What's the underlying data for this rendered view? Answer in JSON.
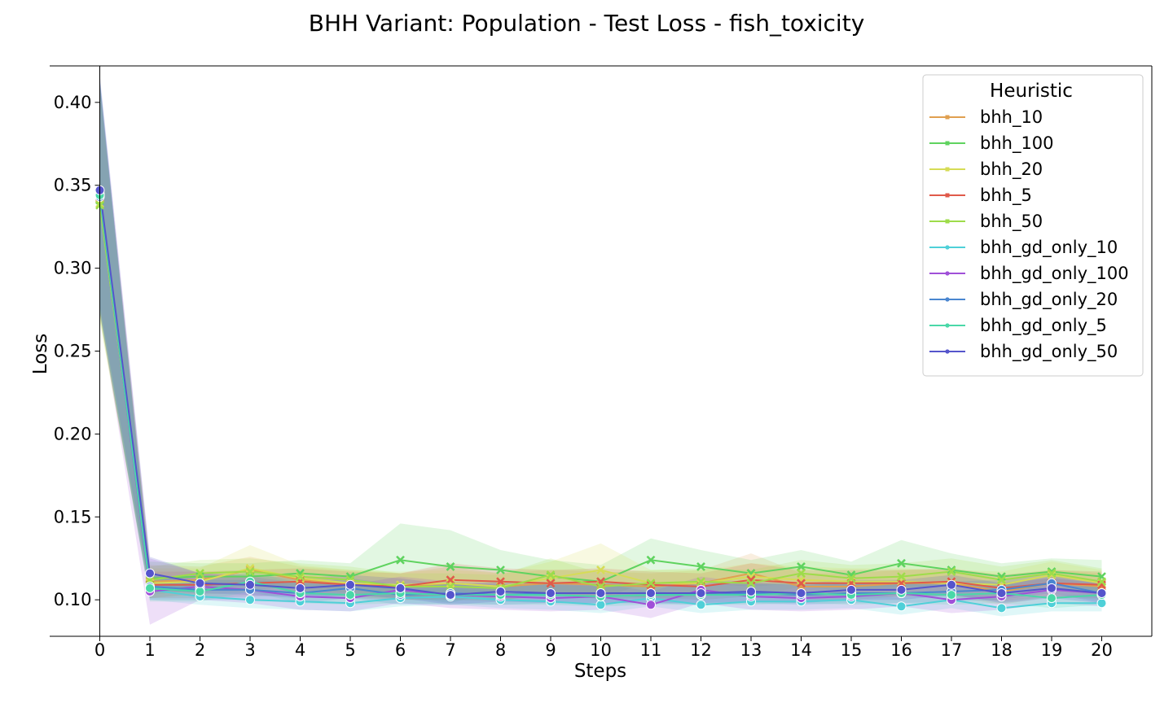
{
  "chart_data": {
    "type": "line",
    "title": "BHH Variant: Population - Test Loss - fish_toxicity",
    "xlabel": "Steps",
    "ylabel": "Loss",
    "xlim": [
      -1,
      21
    ],
    "ylim": [
      0.078,
      0.422
    ],
    "x": [
      0,
      1,
      2,
      3,
      4,
      5,
      6,
      7,
      8,
      9,
      10,
      11,
      12,
      13,
      14,
      15,
      16,
      17,
      18,
      19,
      20
    ],
    "x_ticks": [
      "0",
      "1",
      "2",
      "3",
      "4",
      "5",
      "6",
      "7",
      "8",
      "9",
      "10",
      "11",
      "12",
      "13",
      "14",
      "15",
      "16",
      "17",
      "18",
      "19",
      "20"
    ],
    "y_ticks": [
      {
        "value": 0.1,
        "label": "0.10"
      },
      {
        "value": 0.15,
        "label": "0.15"
      },
      {
        "value": 0.2,
        "label": "0.20"
      },
      {
        "value": 0.25,
        "label": "0.25"
      },
      {
        "value": 0.3,
        "label": "0.30"
      },
      {
        "value": 0.35,
        "label": "0.35"
      },
      {
        "value": 0.4,
        "label": "0.40"
      }
    ],
    "grid": false,
    "band": "confidence interval shaded around each series",
    "legend": {
      "title": "Heuristic",
      "position": "top-right"
    },
    "series": [
      {
        "name": "bhh_10",
        "color": "#e0a050",
        "marker": "x",
        "values": [
          0.342,
          0.111,
          0.112,
          0.118,
          0.112,
          0.11,
          0.108,
          0.11,
          0.108,
          0.11,
          0.109,
          0.108,
          0.11,
          0.116,
          0.108,
          0.108,
          0.11,
          0.11,
          0.105,
          0.11,
          0.108
        ],
        "band": [
          0.07,
          0.01,
          0.008,
          0.008,
          0.008,
          0.008,
          0.008,
          0.01,
          0.008,
          0.008,
          0.008,
          0.008,
          0.008,
          0.012,
          0.008,
          0.008,
          0.008,
          0.008,
          0.008,
          0.008,
          0.008
        ]
      },
      {
        "name": "bhh_100",
        "color": "#5fd35f",
        "marker": "x",
        "values": [
          0.341,
          0.113,
          0.114,
          0.114,
          0.116,
          0.114,
          0.124,
          0.12,
          0.118,
          0.114,
          0.111,
          0.124,
          0.12,
          0.116,
          0.12,
          0.115,
          0.122,
          0.118,
          0.114,
          0.117,
          0.114
        ],
        "band": [
          0.07,
          0.01,
          0.008,
          0.008,
          0.008,
          0.008,
          0.022,
          0.022,
          0.012,
          0.01,
          0.01,
          0.013,
          0.01,
          0.008,
          0.01,
          0.008,
          0.014,
          0.01,
          0.008,
          0.008,
          0.01
        ]
      },
      {
        "name": "bhh_20",
        "color": "#d6dc56",
        "marker": "x",
        "values": [
          0.339,
          0.11,
          0.111,
          0.119,
          0.113,
          0.11,
          0.109,
          0.11,
          0.108,
          0.113,
          0.118,
          0.11,
          0.11,
          0.114,
          0.112,
          0.111,
          0.111,
          0.11,
          0.109,
          0.115,
          0.11
        ],
        "band": [
          0.07,
          0.009,
          0.008,
          0.014,
          0.008,
          0.008,
          0.008,
          0.008,
          0.008,
          0.01,
          0.016,
          0.008,
          0.008,
          0.008,
          0.008,
          0.008,
          0.008,
          0.008,
          0.008,
          0.008,
          0.008
        ]
      },
      {
        "name": "bhh_5",
        "color": "#e05a4a",
        "marker": "x",
        "values": [
          0.343,
          0.109,
          0.109,
          0.11,
          0.111,
          0.109,
          0.108,
          0.112,
          0.111,
          0.11,
          0.111,
          0.109,
          0.108,
          0.112,
          0.11,
          0.11,
          0.11,
          0.111,
          0.107,
          0.11,
          0.109
        ],
        "band": [
          0.07,
          0.008,
          0.008,
          0.008,
          0.008,
          0.008,
          0.008,
          0.01,
          0.008,
          0.008,
          0.008,
          0.008,
          0.008,
          0.01,
          0.008,
          0.008,
          0.008,
          0.008,
          0.008,
          0.008,
          0.008
        ]
      },
      {
        "name": "bhh_50",
        "color": "#9edc4a",
        "marker": "x",
        "values": [
          0.338,
          0.112,
          0.116,
          0.117,
          0.114,
          0.112,
          0.108,
          0.108,
          0.107,
          0.115,
          0.108,
          0.11,
          0.111,
          0.11,
          0.116,
          0.113,
          0.114,
          0.117,
          0.112,
          0.116,
          0.111
        ],
        "band": [
          0.07,
          0.008,
          0.008,
          0.008,
          0.008,
          0.008,
          0.008,
          0.008,
          0.008,
          0.01,
          0.008,
          0.008,
          0.008,
          0.008,
          0.008,
          0.008,
          0.008,
          0.008,
          0.008,
          0.008,
          0.008
        ]
      },
      {
        "name": "bhh_gd_only_10",
        "color": "#4fd0d8",
        "marker": "o",
        "values": [
          0.345,
          0.106,
          0.102,
          0.1,
          0.099,
          0.098,
          0.101,
          0.102,
          0.1,
          0.099,
          0.097,
          0.101,
          0.097,
          0.099,
          0.099,
          0.1,
          0.096,
          0.1,
          0.095,
          0.098,
          0.098
        ],
        "band": [
          0.07,
          0.006,
          0.005,
          0.005,
          0.005,
          0.005,
          0.005,
          0.005,
          0.005,
          0.005,
          0.005,
          0.005,
          0.005,
          0.005,
          0.005,
          0.005,
          0.005,
          0.005,
          0.005,
          0.005,
          0.005
        ]
      },
      {
        "name": "bhh_gd_only_100",
        "color": "#a050d8",
        "marker": "o",
        "values": [
          0.344,
          0.105,
          0.108,
          0.106,
          0.102,
          0.101,
          0.106,
          0.103,
          0.102,
          0.101,
          0.102,
          0.097,
          0.106,
          0.102,
          0.101,
          0.102,
          0.104,
          0.1,
          0.102,
          0.106,
          0.104
        ],
        "band": [
          0.07,
          0.02,
          0.008,
          0.008,
          0.008,
          0.008,
          0.008,
          0.008,
          0.008,
          0.008,
          0.008,
          0.008,
          0.008,
          0.008,
          0.008,
          0.008,
          0.008,
          0.008,
          0.008,
          0.008,
          0.008
        ]
      },
      {
        "name": "bhh_gd_only_20",
        "color": "#4a86d0",
        "marker": "o",
        "values": [
          0.343,
          0.108,
          0.106,
          0.106,
          0.104,
          0.107,
          0.103,
          0.104,
          0.103,
          0.104,
          0.104,
          0.104,
          0.103,
          0.104,
          0.103,
          0.104,
          0.104,
          0.105,
          0.106,
          0.11,
          0.104
        ],
        "band": [
          0.07,
          0.008,
          0.006,
          0.006,
          0.006,
          0.006,
          0.006,
          0.006,
          0.006,
          0.006,
          0.006,
          0.006,
          0.006,
          0.006,
          0.006,
          0.006,
          0.006,
          0.006,
          0.006,
          0.006,
          0.006
        ]
      },
      {
        "name": "bhh_gd_only_5",
        "color": "#4ad8a8",
        "marker": "o",
        "values": [
          0.344,
          0.107,
          0.105,
          0.111,
          0.104,
          0.103,
          0.104,
          0.103,
          0.103,
          0.103,
          0.102,
          0.103,
          0.103,
          0.103,
          0.104,
          0.103,
          0.104,
          0.103,
          0.104,
          0.101,
          0.103
        ],
        "band": [
          0.07,
          0.008,
          0.006,
          0.006,
          0.006,
          0.006,
          0.006,
          0.006,
          0.006,
          0.006,
          0.006,
          0.006,
          0.006,
          0.006,
          0.006,
          0.006,
          0.006,
          0.006,
          0.006,
          0.006,
          0.006
        ]
      },
      {
        "name": "bhh_gd_only_50",
        "color": "#5555cc",
        "marker": "o",
        "values": [
          0.347,
          0.116,
          0.11,
          0.109,
          0.107,
          0.109,
          0.107,
          0.103,
          0.105,
          0.104,
          0.104,
          0.104,
          0.104,
          0.105,
          0.104,
          0.106,
          0.106,
          0.109,
          0.104,
          0.107,
          0.104
        ],
        "band": [
          0.07,
          0.01,
          0.006,
          0.006,
          0.006,
          0.006,
          0.006,
          0.006,
          0.006,
          0.006,
          0.006,
          0.006,
          0.006,
          0.006,
          0.006,
          0.006,
          0.006,
          0.006,
          0.006,
          0.006,
          0.006
        ]
      }
    ]
  }
}
